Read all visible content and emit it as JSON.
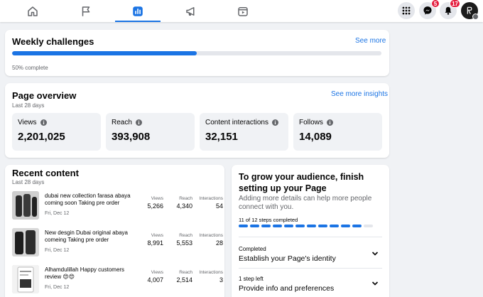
{
  "nav": {
    "tabs": [
      {
        "name": "home",
        "icon": "home-icon",
        "active": false
      },
      {
        "name": "pages",
        "icon": "flag-icon",
        "active": false
      },
      {
        "name": "insights",
        "icon": "bar-chart-icon",
        "active": true
      },
      {
        "name": "ads",
        "icon": "megaphone-icon",
        "active": false
      },
      {
        "name": "video",
        "icon": "video-icon",
        "active": false
      }
    ],
    "messenger_badge": "5",
    "notifications_badge": "17",
    "accent": "#1b74e4"
  },
  "weekly": {
    "title": "Weekly challenges",
    "see_more": "See more",
    "progress_text": "50% complete",
    "progress_fraction": 0.5
  },
  "overview": {
    "title": "Page overview",
    "period": "Last 28 days",
    "see_more": "See more insights",
    "metrics": [
      {
        "label": "Views",
        "value": "2,201,025"
      },
      {
        "label": "Reach",
        "value": "393,908"
      },
      {
        "label": "Content interactions",
        "value": "32,151"
      },
      {
        "label": "Follows",
        "value": "14,089"
      }
    ]
  },
  "recent": {
    "title": "Recent content",
    "period": "Last 28 days",
    "col_views": "Views",
    "col_reach": "Reach",
    "col_interactions": "Interactions",
    "posts": [
      {
        "text": "dubai new collection farasa abaya coming soon Taking pre order",
        "date": "Fri, Dec 12",
        "views": "5,266",
        "reach": "4,340",
        "interactions": "54"
      },
      {
        "text": "New desgin Dubai original abaya comeing Taking pre order",
        "date": "Fri, Dec 12",
        "views": "8,991",
        "reach": "5,553",
        "interactions": "28"
      },
      {
        "text": "Alhamdulillah Happy customers review 😍😍",
        "date": "Fri, Dec 12",
        "views": "4,007",
        "reach": "2,514",
        "interactions": "3"
      }
    ]
  },
  "grow": {
    "title": "To grow your audience, finish setting up your Page",
    "description": "Adding more details can help more people connect with you.",
    "steps_text": "11 of 12 steps completed",
    "steps_done": 11,
    "steps_total": 12,
    "items": [
      {
        "status": "Completed",
        "title": "Establish your Page's identity"
      },
      {
        "status": "1 step left",
        "title": "Provide info and preferences"
      }
    ]
  }
}
